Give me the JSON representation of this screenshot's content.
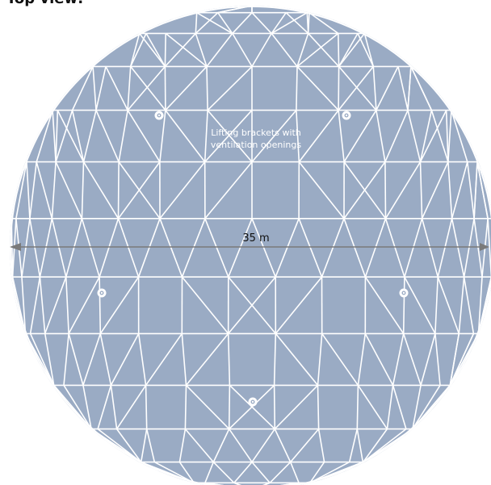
{
  "title": "Top view:",
  "annotation": {
    "line1": "Lifting brackets with",
    "line2": "ventilation openings"
  },
  "dimension": {
    "label": "35 m"
  },
  "colors": {
    "dome_fill": "#9aabc4",
    "frame": "#ffffff",
    "dimension_line": "#7a7a7a",
    "bracket": "#ffffff"
  },
  "icons": {
    "bracket": "lifting-bracket-icon"
  }
}
